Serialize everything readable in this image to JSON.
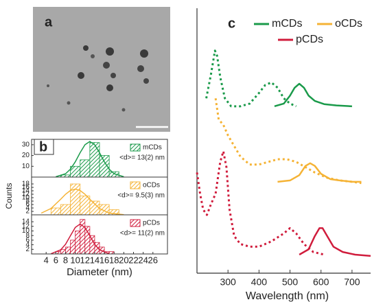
{
  "panel_a": {
    "label": "a"
  },
  "chart_data": [
    {
      "type": "histogram",
      "panel_label": "b",
      "name": "mCDs",
      "annotation": "<d>= 13(2) nm",
      "color": "#1a9a4a",
      "bins": [
        7,
        9,
        11,
        13,
        15,
        17,
        19
      ],
      "values": [
        2,
        10,
        16,
        32,
        20,
        5
      ],
      "fit": {
        "x": [
          6,
          8,
          9,
          10,
          11,
          12,
          13,
          14,
          15,
          16,
          17,
          18,
          20
        ],
        "values": [
          0.3,
          3.1,
          7.3,
          14.1,
          22.6,
          30,
          33,
          30,
          22.6,
          14.1,
          7.3,
          3.1,
          0.3
        ]
      },
      "xlim": [
        1,
        29
      ],
      "ylim": [
        0,
        35
      ],
      "yticks": [
        10,
        20,
        30
      ]
    },
    {
      "type": "histogram",
      "name": "oCDs",
      "annotation": "<d>= 9.5(3) nm",
      "color": "#f5b335",
      "ylabel": "Counts",
      "bins": [
        5,
        7,
        9,
        11,
        13,
        15,
        17,
        19
      ],
      "values": [
        4,
        6,
        18,
        11,
        8,
        6,
        3
      ],
      "fit": {
        "x": [
          3,
          5,
          7,
          8,
          9,
          10,
          11,
          12,
          13,
          15,
          17,
          20
        ],
        "values": [
          1,
          3.7,
          9.1,
          12,
          14.2,
          15,
          14.2,
          12,
          9.1,
          3.7,
          1,
          0.1
        ]
      },
      "xlim": [
        1,
        29
      ],
      "ylim": [
        0,
        22
      ],
      "yticks": [
        2,
        4,
        6,
        8,
        10,
        12,
        14,
        16,
        18
      ]
    },
    {
      "type": "histogram",
      "name": "pCDs",
      "annotation": "<d>= 11(2) nm",
      "color": "#d01c3c",
      "xlabel": "Diameter (nm)",
      "bins": [
        6,
        7,
        8,
        9,
        10,
        11,
        12,
        13,
        14,
        15,
        16,
        17,
        18
      ],
      "values": [
        1,
        2,
        3,
        6,
        10,
        15,
        12,
        8,
        5,
        3,
        1,
        1
      ],
      "fit": {
        "x": [
          5,
          7,
          8,
          9,
          10,
          11,
          12,
          13,
          14,
          15,
          17
        ],
        "values": [
          0.1,
          1.8,
          4.2,
          7.9,
          11.5,
          13,
          11.5,
          7.9,
          4.2,
          1.8,
          0.1
        ]
      },
      "xlim": [
        1,
        29
      ],
      "ylim": [
        0,
        17
      ],
      "yticks": [
        2,
        4,
        6,
        8,
        10,
        12,
        14
      ],
      "xticks": [
        4,
        6,
        8,
        10,
        12,
        14,
        16,
        18,
        20,
        22,
        24,
        26
      ]
    },
    {
      "type": "line",
      "panel_label": "c",
      "xlabel": "Wavelength (nm)",
      "xlim": [
        200,
        760
      ],
      "xticks": [
        300,
        400,
        500,
        600,
        700
      ],
      "ylim": [
        0,
        100
      ],
      "series": [
        {
          "name": "mCDs",
          "color": "#1a9a4a",
          "dash": false,
          "x": [
            450,
            480,
            500,
            515,
            530,
            545,
            560,
            580,
            610,
            650,
            700
          ],
          "values": [
            63,
            64,
            67,
            70,
            71.5,
            70,
            67,
            65,
            63.8,
            63.3,
            63
          ]
        },
        {
          "name": "oCDs",
          "color": "#f5b335",
          "dash": false,
          "x": [
            460,
            500,
            530,
            550,
            565,
            580,
            600,
            630,
            660,
            700,
            730
          ],
          "values": [
            34.5,
            35,
            37,
            40.5,
            41.5,
            40.5,
            37.5,
            35.5,
            35,
            34.5,
            34.5
          ]
        },
        {
          "name": "pCDs",
          "color": "#d01c3c",
          "dash": false,
          "x": [
            530,
            560,
            580,
            595,
            605,
            620,
            640,
            670,
            710,
            760
          ],
          "values": [
            7,
            9,
            14,
            17,
            17,
            14,
            10,
            8,
            7,
            6.5
          ]
        },
        {
          "color": "#1a9a4a",
          "dash": true,
          "x": [
            230,
            245,
            258,
            265,
            275,
            290,
            310,
            340,
            370,
            400,
            420,
            440,
            460,
            480,
            500,
            520
          ],
          "values": [
            66,
            75,
            84,
            82,
            74,
            66,
            63,
            63,
            64,
            68,
            71,
            72,
            70,
            66,
            64,
            63
          ]
        },
        {
          "color": "#f5b335",
          "dash": true,
          "x": [
            260,
            270,
            285,
            300,
            320,
            340,
            370,
            400,
            430,
            460,
            490,
            520,
            550,
            580,
            620,
            660,
            700,
            730
          ],
          "values": [
            66,
            58,
            56,
            52,
            48,
            44,
            41,
            41,
            42,
            43,
            43,
            42,
            40,
            38,
            36,
            35,
            34.5,
            34
          ]
        },
        {
          "color": "#d01c3c",
          "dash": true,
          "x": [
            200,
            210,
            220,
            232,
            245,
            260,
            275,
            285,
            295,
            305,
            320,
            340,
            370,
            400,
            440,
            480,
            500,
            520,
            545,
            575,
            610
          ],
          "values": [
            38,
            30,
            24,
            22,
            26,
            30,
            42,
            46,
            40,
            24,
            14,
            11,
            10,
            10,
            12,
            15,
            17,
            15,
            11,
            8,
            7
          ]
        }
      ]
    }
  ]
}
